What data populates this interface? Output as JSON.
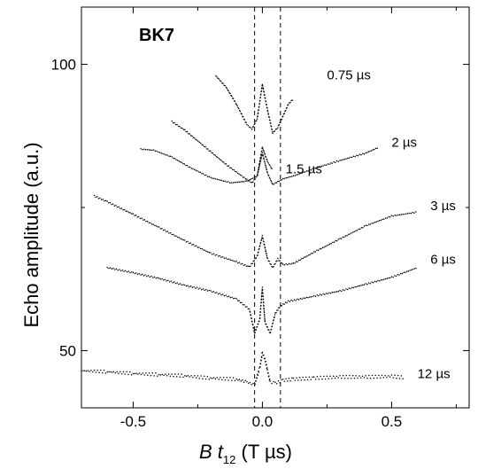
{
  "chart_data": {
    "type": "scatter",
    "title": "",
    "annotation": "BK7",
    "xlabel_var": "B t",
    "xlabel_sub": "12",
    "xlabel_unit": "(T µs)",
    "ylabel": "Echo amplitude (a.u.)",
    "xlim": [
      -0.7,
      0.8
    ],
    "ylim": [
      40,
      110
    ],
    "xticks": [
      -0.5,
      0.0,
      0.5
    ],
    "xtick_labels": [
      "-0.5",
      "0.0",
      "0.5"
    ],
    "yticks": [
      50,
      100
    ],
    "ytick_labels": [
      "50",
      "100"
    ],
    "reference_lines_x": [
      -0.03,
      0.07
    ],
    "grid": false,
    "series": [
      {
        "name": "0.75 µs",
        "x": [
          -0.18,
          -0.14,
          -0.1,
          -0.06,
          -0.04,
          -0.02,
          0.0,
          0.02,
          0.04,
          0.06,
          0.08,
          0.1,
          0.12
        ],
        "y": [
          98.0,
          96.0,
          93.0,
          89.5,
          88.7,
          90.5,
          96.5,
          92.0,
          88.0,
          89.0,
          91.0,
          93.0,
          94.0
        ]
      },
      {
        "name": "1.5 µs",
        "x": [
          -0.47,
          -0.42,
          -0.35,
          -0.28,
          -0.2,
          -0.12,
          -0.06,
          -0.02,
          0.0,
          0.02,
          0.04
        ],
        "y": [
          85.2,
          85.0,
          83.8,
          82.0,
          80.2,
          79.3,
          79.6,
          80.5,
          85.5,
          83.0,
          81.5
        ]
      },
      {
        "name": "2 µs",
        "x": [
          -0.35,
          -0.3,
          -0.22,
          -0.14,
          -0.08,
          -0.04,
          -0.02,
          0.0,
          0.02,
          0.04,
          0.06,
          0.08,
          0.12,
          0.2,
          0.3,
          0.4,
          0.45
        ],
        "y": [
          90.0,
          88.5,
          85.5,
          82.5,
          80.5,
          79.3,
          80.5,
          84.5,
          81.0,
          79.0,
          79.5,
          80.0,
          80.5,
          81.8,
          83.2,
          84.5,
          85.5
        ]
      },
      {
        "name": "3 µs",
        "x": [
          -0.65,
          -0.6,
          -0.5,
          -0.4,
          -0.3,
          -0.2,
          -0.1,
          -0.05,
          -0.02,
          0.0,
          0.02,
          0.04,
          0.06,
          0.08,
          0.12,
          0.2,
          0.3,
          0.4,
          0.5,
          0.6
        ],
        "y": [
          77.0,
          76.0,
          73.8,
          71.5,
          69.2,
          67.0,
          65.5,
          64.6,
          66.5,
          70.0,
          66.0,
          64.5,
          66.0,
          65.0,
          65.2,
          67.2,
          69.5,
          71.8,
          73.5,
          74.2
        ]
      },
      {
        "name": "6 µs",
        "x": [
          -0.6,
          -0.5,
          -0.4,
          -0.3,
          -0.2,
          -0.1,
          -0.05,
          -0.03,
          -0.01,
          0.0,
          0.01,
          0.03,
          0.05,
          0.07,
          0.1,
          0.2,
          0.3,
          0.4,
          0.5,
          0.6
        ],
        "y": [
          64.5,
          63.6,
          62.6,
          61.4,
          60.4,
          59.0,
          57.2,
          53.0,
          55.5,
          61.0,
          55.0,
          53.0,
          56.5,
          57.8,
          58.6,
          59.5,
          60.4,
          61.6,
          62.8,
          64.5
        ]
      },
      {
        "name": "12 µs",
        "x": [
          -0.7,
          -0.6,
          -0.5,
          -0.4,
          -0.3,
          -0.2,
          -0.1,
          -0.06,
          -0.03,
          -0.01,
          0.0,
          0.01,
          0.02,
          0.03,
          0.05,
          0.08,
          0.12,
          0.2,
          0.3,
          0.4,
          0.5,
          0.55
        ],
        "y": [
          46.5,
          46.3,
          46.0,
          45.8,
          45.6,
          45.2,
          45.0,
          44.5,
          44.0,
          47.0,
          49.6,
          48.5,
          46.5,
          44.5,
          44.3,
          44.8,
          45.0,
          45.2,
          45.4,
          45.4,
          45.5,
          45.3
        ]
      }
    ],
    "series_label_positions": [
      {
        "name": "0.75 µs",
        "x": 0.25,
        "y": 97.4
      },
      {
        "name": "1.5 µs",
        "x": 0.09,
        "y": 81.0
      },
      {
        "name": "2 µs",
        "x": 0.5,
        "y": 85.6
      },
      {
        "name": "3 µs",
        "x": 0.65,
        "y": 74.5
      },
      {
        "name": "6 µs",
        "x": 0.65,
        "y": 65.2
      },
      {
        "name": "12 µs",
        "x": 0.6,
        "y": 45.2
      }
    ]
  }
}
